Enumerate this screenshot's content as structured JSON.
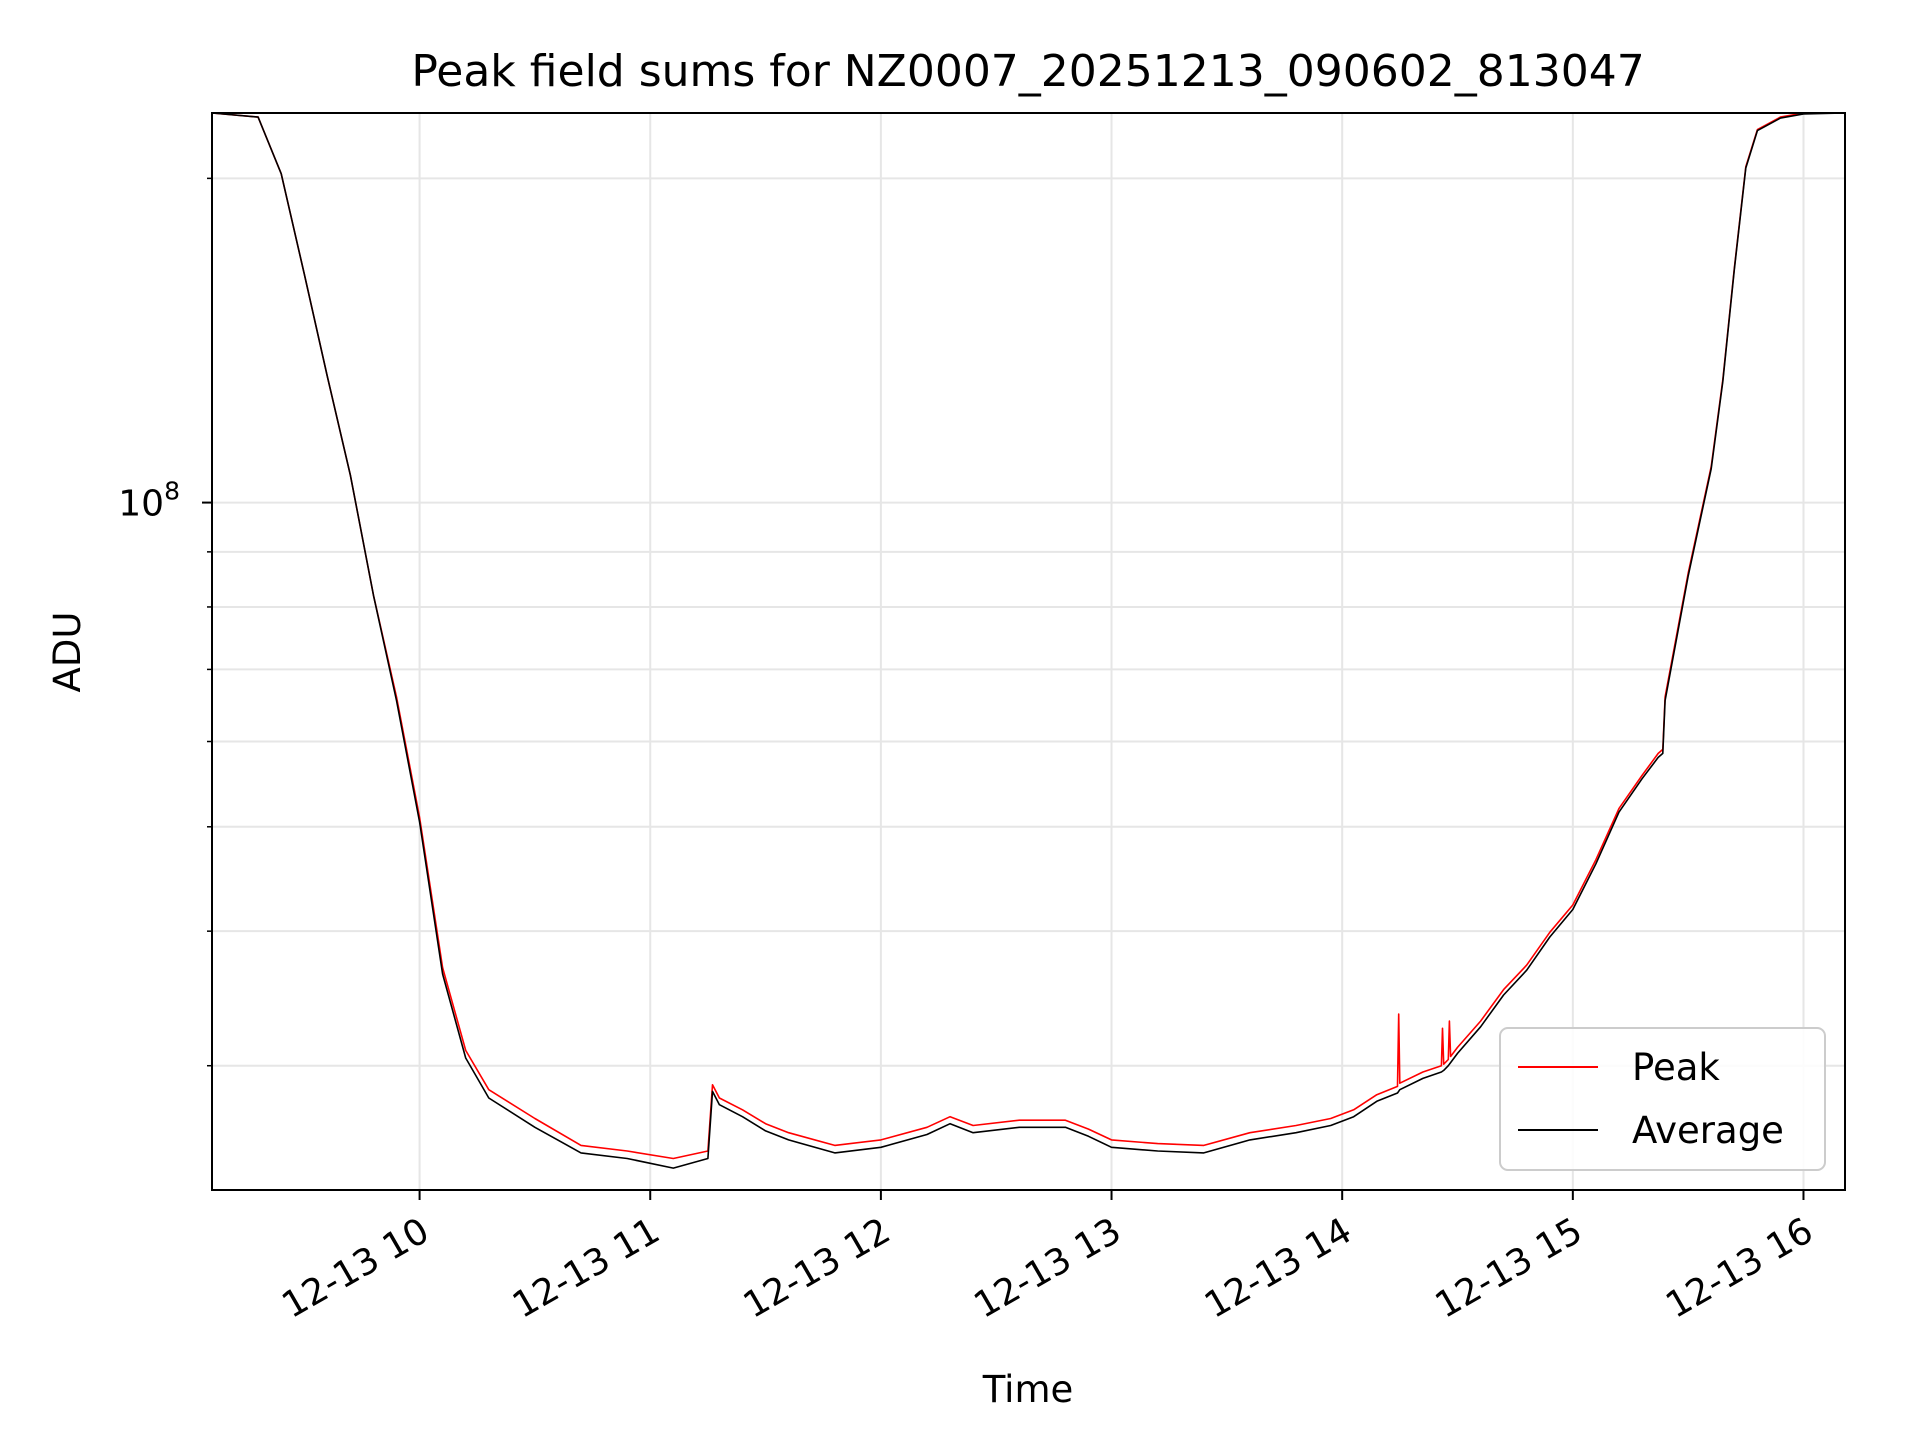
{
  "chart_data": {
    "type": "line",
    "title": "Peak field sums for NZ0007_20251213_090602_813047",
    "xlabel": "Time",
    "ylabel": "ADU",
    "y_scale": "log",
    "xlim": [
      9.1,
      16.18
    ],
    "ylim": [
      23000000,
      230000000
    ],
    "x_ticks": [
      {
        "value": 10,
        "label": "12-13 10"
      },
      {
        "value": 11,
        "label": "12-13 11"
      },
      {
        "value": 12,
        "label": "12-13 12"
      },
      {
        "value": 13,
        "label": "12-13 13"
      },
      {
        "value": 14,
        "label": "12-13 14"
      },
      {
        "value": 15,
        "label": "12-13 15"
      },
      {
        "value": 16,
        "label": "12-13 16"
      }
    ],
    "y_major_ticks": [
      {
        "value": 100000000,
        "base": "10",
        "exp": "8"
      }
    ],
    "y_minor_ticks": [
      30000000,
      40000000,
      50000000,
      60000000,
      70000000,
      80000000,
      90000000,
      200000000
    ],
    "grid": true,
    "legend_position": "lower right",
    "series": [
      {
        "name": "Peak",
        "color": "#ff0000",
        "x": [
          9.1,
          9.3,
          9.4,
          9.5,
          9.6,
          9.7,
          9.8,
          9.9,
          10.0,
          10.1,
          10.2,
          10.3,
          10.5,
          10.7,
          10.9,
          11.1,
          11.25,
          11.27,
          11.3,
          11.4,
          11.5,
          11.6,
          11.8,
          12.0,
          12.2,
          12.3,
          12.4,
          12.6,
          12.8,
          12.9,
          13.0,
          13.2,
          13.4,
          13.6,
          13.8,
          13.95,
          14.05,
          14.15,
          14.24,
          14.245,
          14.25,
          14.35,
          14.43,
          14.435,
          14.44,
          14.46,
          14.465,
          14.47,
          14.5,
          14.6,
          14.7,
          14.8,
          14.9,
          15.0,
          15.1,
          15.2,
          15.3,
          15.37,
          15.39,
          15.4,
          15.5,
          15.6,
          15.65,
          15.7,
          15.75,
          15.8,
          15.9,
          16.0,
          16.18
        ],
        "y": [
          230000000,
          228000000,
          202000000,
          163000000,
          131000000,
          106000000,
          82000000,
          66000000,
          51000000,
          37000000,
          31000000,
          28500000,
          26800000,
          25300000,
          25000000,
          24600000,
          25000000,
          28800000,
          28000000,
          27300000,
          26500000,
          26000000,
          25300000,
          25600000,
          26300000,
          26900000,
          26400000,
          26700000,
          26700000,
          26200000,
          25600000,
          25400000,
          25300000,
          26000000,
          26400000,
          26800000,
          27300000,
          28200000,
          28700000,
          33500000,
          28900000,
          29600000,
          30000000,
          32500000,
          30100000,
          30400000,
          33000000,
          30600000,
          31200000,
          33000000,
          35300000,
          37200000,
          39900000,
          42300000,
          46600000,
          52000000,
          55800000,
          58500000,
          59000000,
          66000000,
          86000000,
          108000000,
          130000000,
          165000000,
          205000000,
          222000000,
          228000000,
          230000000,
          230000000
        ]
      },
      {
        "name": "Average",
        "color": "#000000",
        "x": [
          9.1,
          9.3,
          9.4,
          9.5,
          9.6,
          9.7,
          9.8,
          9.9,
          10.0,
          10.1,
          10.2,
          10.3,
          10.5,
          10.7,
          10.9,
          11.1,
          11.25,
          11.27,
          11.3,
          11.4,
          11.5,
          11.6,
          11.8,
          12.0,
          12.2,
          12.3,
          12.4,
          12.6,
          12.8,
          12.9,
          13.0,
          13.2,
          13.4,
          13.6,
          13.8,
          13.95,
          14.05,
          14.15,
          14.24,
          14.25,
          14.35,
          14.43,
          14.44,
          14.46,
          14.47,
          14.5,
          14.6,
          14.7,
          14.8,
          14.9,
          15.0,
          15.1,
          15.2,
          15.3,
          15.37,
          15.39,
          15.4,
          15.5,
          15.6,
          15.65,
          15.7,
          15.75,
          15.8,
          15.9,
          16.0,
          16.18
        ],
        "y": [
          230000000,
          228000000,
          202000000,
          163000000,
          131000000,
          106000000,
          82000000,
          65500000,
          50500000,
          36500000,
          30500000,
          28000000,
          26300000,
          24900000,
          24600000,
          24100000,
          24600000,
          28400000,
          27600000,
          26900000,
          26100000,
          25600000,
          24900000,
          25200000,
          25900000,
          26500000,
          26000000,
          26300000,
          26300000,
          25800000,
          25200000,
          25000000,
          24900000,
          25600000,
          26000000,
          26400000,
          26900000,
          27800000,
          28300000,
          28500000,
          29200000,
          29600000,
          29700000,
          30000000,
          30200000,
          30800000,
          32600000,
          34900000,
          36800000,
          39500000,
          41900000,
          46200000,
          51600000,
          55400000,
          58000000,
          58500000,
          65500000,
          85500000,
          107500000,
          129500000,
          164500000,
          204500000,
          221500000,
          227500000,
          229500000,
          230000000
        ]
      }
    ]
  }
}
